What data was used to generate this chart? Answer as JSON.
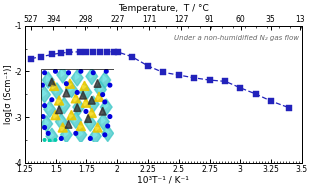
{
  "title_top": "Temperature,  T / °C",
  "xlabel": "10³T⁻¹ / K⁻¹",
  "ylabel": "log[σ (Scm⁻¹)]",
  "annotation": "Under a non-humidified N₂ gas flow",
  "x_data": [
    1.3,
    1.38,
    1.47,
    1.54,
    1.61,
    1.7,
    1.75,
    1.8,
    1.86,
    1.92,
    1.97,
    2.01,
    2.12,
    2.25,
    2.37,
    2.5,
    2.62,
    2.75,
    2.88,
    3.0,
    3.13,
    3.25,
    3.4
  ],
  "y_data": [
    -1.72,
    -1.68,
    -1.63,
    -1.6,
    -1.58,
    -1.57,
    -1.57,
    -1.57,
    -1.57,
    -1.57,
    -1.57,
    -1.58,
    -1.68,
    -1.88,
    -2.02,
    -2.08,
    -2.14,
    -2.19,
    -2.22,
    -2.36,
    -2.5,
    -2.65,
    -2.8
  ],
  "xlim": [
    1.25,
    3.5
  ],
  "ylim": [
    -4.0,
    -1.0
  ],
  "xticks_bottom": [
    1.25,
    1.5,
    1.75,
    2.0,
    2.25,
    2.5,
    2.75,
    3.0,
    3.25,
    3.5
  ],
  "yticks": [
    -4,
    -3,
    -2,
    -1
  ],
  "top_temp_labels": [
    "527",
    "394",
    "298",
    "227",
    "171",
    "127",
    "91",
    "60",
    "35",
    "13"
  ],
  "top_temp_x": [
    1.298,
    1.481,
    1.741,
    2.0,
    2.262,
    2.52,
    2.752,
    3.003,
    3.247,
    3.484
  ],
  "line_color": "#2222bb",
  "marker_color": "#2222bb",
  "bg_color": "#ffffff",
  "annotation_color": "#666666",
  "inset_x0": 1.38,
  "inset_x1": 1.97,
  "inset_y0": -3.55,
  "inset_y1": -1.95
}
